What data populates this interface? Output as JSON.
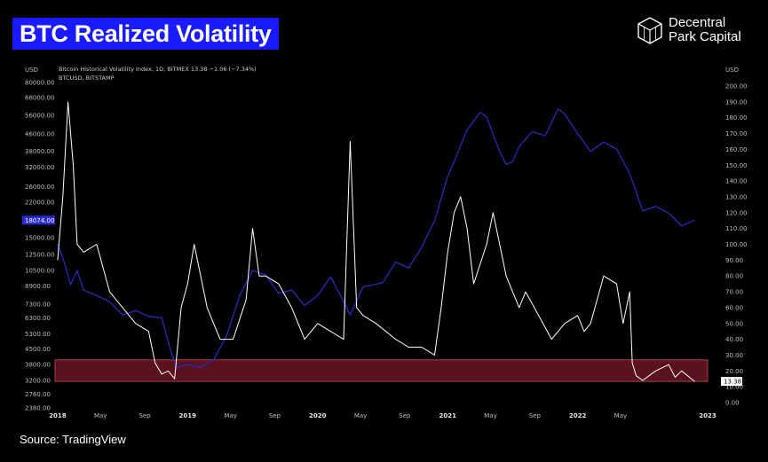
{
  "header": {
    "title": "BTC Realized Volatility",
    "brand_line1": "Decentral",
    "brand_line2": "Park Capital",
    "brand_icon": "cube-logo-icon"
  },
  "footer": {
    "source": "Source: TradingView"
  },
  "colors": {
    "background": "#000000",
    "title_bg": "#1a1aff",
    "price_line": "#2a2ab8",
    "vol_line": "#ffffff",
    "band_fill": "#5a1220",
    "band_stroke": "#c44a5c",
    "price_badge": "#2a2ad8"
  },
  "chart_data": {
    "type": "line",
    "legend_vol": "Bitcoin Historical Volatility Index, 1D, BITMEX  13.38  −1.06 (−7.34%)",
    "legend_price": "BTCUSD, BITSTAMP",
    "left_axis_unit": "USD",
    "right_axis_unit": "USD",
    "left_ticks": [
      "80000.00",
      "68000.00",
      "56000.00",
      "46000.00",
      "38000.00",
      "32000.00",
      "26000.00",
      "22000.00",
      "15000.00",
      "12500.00",
      "10500.00",
      "8900.00",
      "7300.00",
      "6300.00",
      "5300.00",
      "4500.00",
      "3800.00",
      "3200.00",
      "2760.00",
      "2380.00"
    ],
    "right_ticks": [
      "200.00",
      "190.00",
      "180.00",
      "170.00",
      "160.00",
      "150.00",
      "140.00",
      "130.00",
      "120.00",
      "110.00",
      "100.00",
      "90.00",
      "80.00",
      "70.00",
      "60.00",
      "50.00",
      "40.00",
      "30.00",
      "20.00",
      "10.00",
      "0.00"
    ],
    "x_ticks": [
      "2018",
      "May",
      "Sep",
      "2019",
      "May",
      "Sep",
      "2020",
      "May",
      "Sep",
      "2021",
      "May",
      "Sep",
      "2022",
      "May",
      "2023"
    ],
    "price_last_label": "18074.00",
    "vol_last_label": "13.38",
    "y_right_range": [
      0,
      200
    ],
    "y_left_scale": "log",
    "band_range_right_axis": [
      13.38,
      27
    ],
    "grid": false,
    "series": [
      {
        "name": "BTCUSD, BITSTAMP",
        "axis": "left",
        "x": [
          2018.0,
          2018.05,
          2018.1,
          2018.15,
          2018.2,
          2018.3,
          2018.4,
          2018.5,
          2018.6,
          2018.7,
          2018.8,
          2018.88,
          2018.92,
          2019.0,
          2019.1,
          2019.2,
          2019.3,
          2019.4,
          2019.5,
          2019.6,
          2019.7,
          2019.8,
          2019.9,
          2020.0,
          2020.1,
          2020.2,
          2020.25,
          2020.35,
          2020.5,
          2020.6,
          2020.7,
          2020.8,
          2020.9,
          2021.0,
          2021.05,
          2021.15,
          2021.25,
          2021.3,
          2021.4,
          2021.45,
          2021.5,
          2021.55,
          2021.65,
          2021.75,
          2021.85,
          2021.9,
          2022.0,
          2022.1,
          2022.2,
          2022.3,
          2022.4,
          2022.5,
          2022.6,
          2022.7,
          2022.8,
          2022.9
        ],
        "y": [
          14000,
          11500,
          9000,
          10500,
          8500,
          8000,
          7500,
          6500,
          6800,
          6400,
          6300,
          4200,
          3700,
          3800,
          3700,
          4000,
          5200,
          8000,
          10500,
          10000,
          8200,
          8500,
          7200,
          8000,
          9800,
          7500,
          6500,
          8800,
          9200,
          11500,
          10800,
          13500,
          18000,
          29000,
          34000,
          48000,
          58000,
          55000,
          38000,
          33000,
          34000,
          40000,
          47000,
          45000,
          60000,
          57000,
          46000,
          38000,
          42000,
          39000,
          30000,
          20000,
          21000,
          19500,
          17000,
          18074
        ]
      },
      {
        "name": "Bitcoin Historical Volatility Index",
        "axis": "right",
        "x": [
          2018.0,
          2018.04,
          2018.08,
          2018.12,
          2018.15,
          2018.2,
          2018.3,
          2018.4,
          2018.5,
          2018.6,
          2018.7,
          2018.75,
          2018.8,
          2018.85,
          2018.9,
          2018.95,
          2019.0,
          2019.05,
          2019.15,
          2019.25,
          2019.35,
          2019.45,
          2019.5,
          2019.55,
          2019.6,
          2019.7,
          2019.8,
          2019.9,
          2020.0,
          2020.1,
          2020.2,
          2020.25,
          2020.3,
          2020.35,
          2020.45,
          2020.6,
          2020.7,
          2020.8,
          2020.9,
          2020.95,
          2021.0,
          2021.05,
          2021.1,
          2021.15,
          2021.2,
          2021.3,
          2021.35,
          2021.45,
          2021.5,
          2021.55,
          2021.6,
          2021.7,
          2021.8,
          2021.9,
          2022.0,
          2022.05,
          2022.1,
          2022.2,
          2022.3,
          2022.35,
          2022.4,
          2022.42,
          2022.45,
          2022.5,
          2022.6,
          2022.7,
          2022.75,
          2022.8,
          2022.9
        ],
        "y": [
          90,
          130,
          190,
          150,
          100,
          95,
          100,
          70,
          60,
          50,
          45,
          25,
          18,
          20,
          15,
          60,
          75,
          100,
          60,
          40,
          40,
          65,
          110,
          80,
          80,
          75,
          60,
          40,
          50,
          45,
          40,
          165,
          60,
          55,
          50,
          40,
          35,
          35,
          30,
          60,
          95,
          120,
          130,
          110,
          75,
          100,
          120,
          80,
          70,
          60,
          70,
          55,
          40,
          50,
          55,
          45,
          50,
          80,
          75,
          50,
          70,
          25,
          17,
          14,
          20,
          24,
          16,
          20,
          13.38
        ]
      }
    ]
  }
}
